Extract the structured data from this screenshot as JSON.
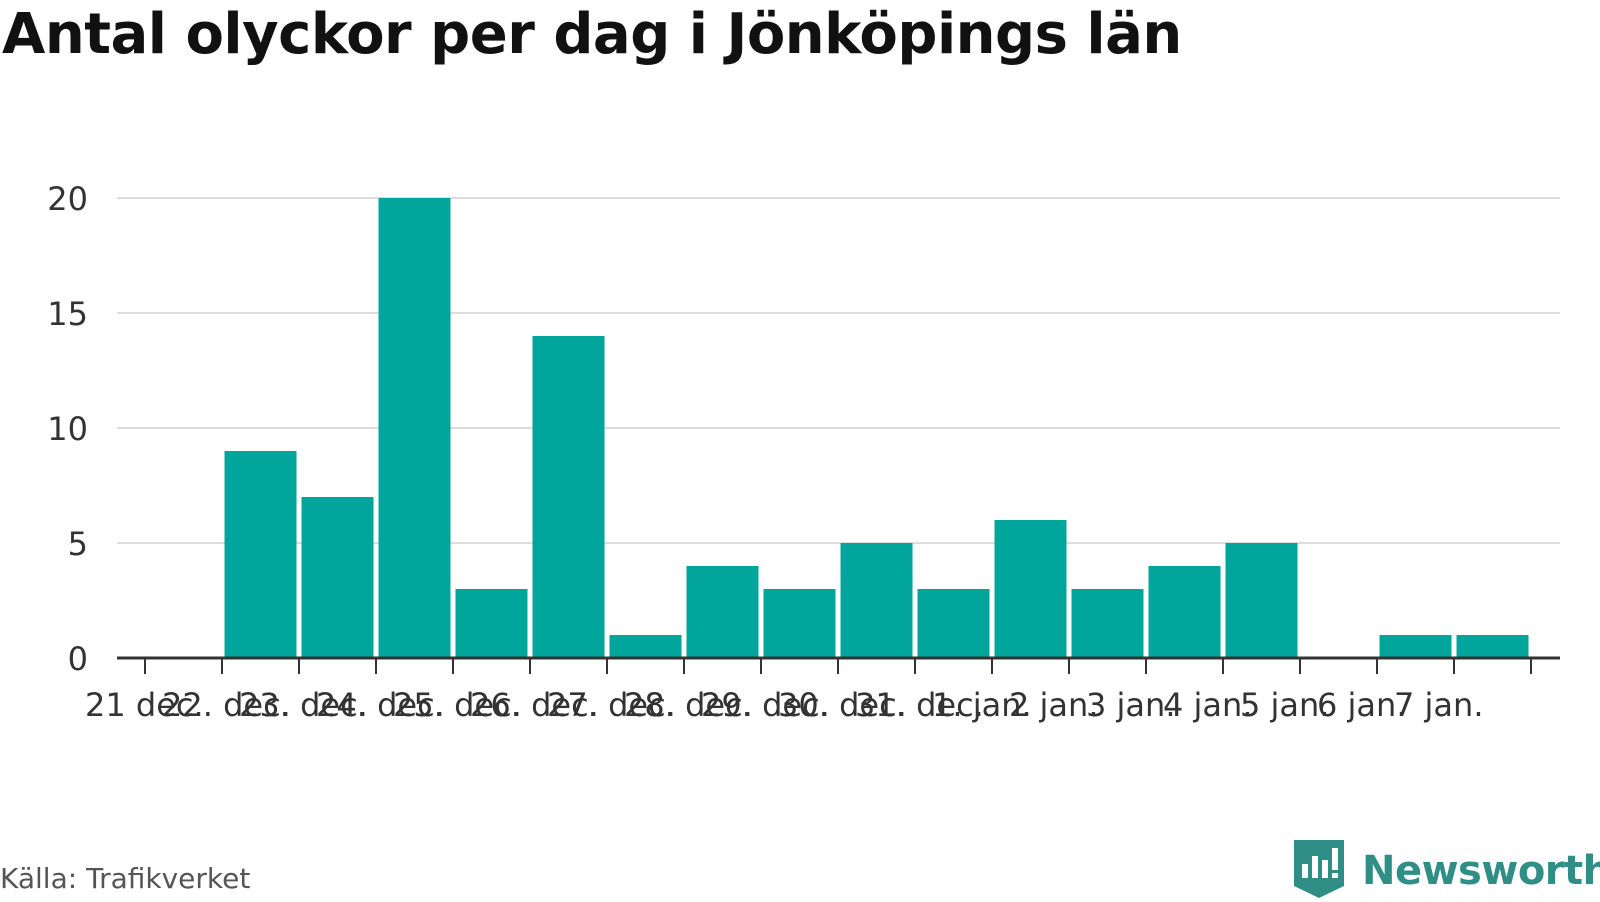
{
  "title": "Antal olyckor per dag i Jönköpings län",
  "source": "Källa: Trafikverket",
  "brand": {
    "name": "Newsworthy",
    "icon": "bar-chart-flag-icon"
  },
  "colors": {
    "bar": "#00a59b",
    "grid": "#dddddd",
    "axis": "#333333",
    "brand": "#2f8f86"
  },
  "chart_data": {
    "type": "bar",
    "title": "Antal olyckor per dag i Jönköpings län",
    "xlabel": "",
    "ylabel": "",
    "ylim": [
      0,
      20
    ],
    "yticks": [
      0,
      5,
      10,
      15,
      20
    ],
    "grid": true,
    "categories": [
      "21 dec.",
      "22. dec.",
      "23. dec.",
      "24. dec.",
      "25. dec.",
      "26. dec.",
      "27. dec.",
      "28. dec.",
      "29. dec.",
      "30. dec.",
      "31. dec.",
      "1. jan.",
      "2 jan.",
      "3 jan.",
      "4 jan.",
      "5 jan.",
      "6 jan.",
      "7 jan."
    ],
    "values": [
      null,
      9,
      7,
      20,
      3,
      14,
      1,
      4,
      3,
      5,
      3,
      6,
      3,
      4,
      5,
      0,
      1,
      1
    ]
  }
}
